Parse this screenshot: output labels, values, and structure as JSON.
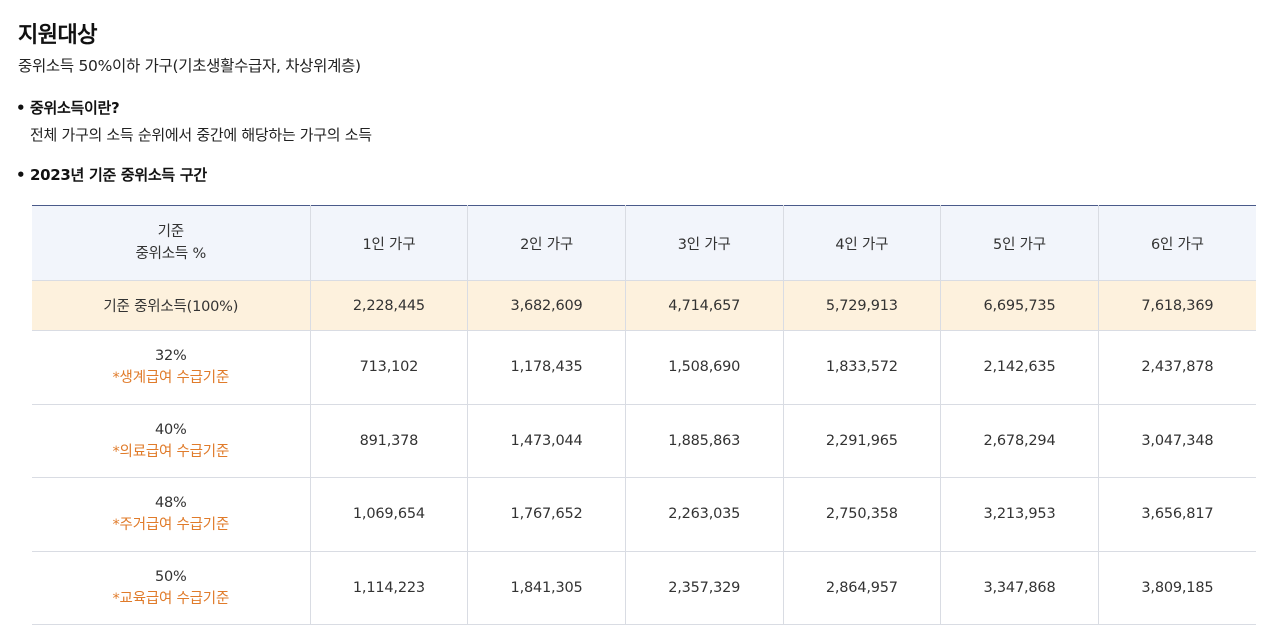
{
  "page": {
    "title": "지원대상",
    "summary": "중위소득 50%이하 가구(기초생활수급자, 차상위계층)"
  },
  "bullets": [
    {
      "marker": "•",
      "heading": "중위소득이란?",
      "description": "전체 가구의 소득 순위에서 중간에 해당하는 가구의 소득"
    },
    {
      "marker": "•",
      "heading": "2023년 기준 중위소득 구간"
    }
  ],
  "table": {
    "header": {
      "first_line1": "기준",
      "first_line2": "중위소득 %",
      "columns": [
        "1인 가구",
        "2인 가구",
        "3인 가구",
        "4인 가구",
        "5인 가구",
        "6인 가구"
      ]
    },
    "base_row": {
      "label": "기준 중위소득(100%)",
      "values": [
        "2,228,445",
        "3,682,609",
        "4,714,657",
        "5,729,913",
        "6,695,735",
        "7,618,369"
      ]
    },
    "tiers": [
      {
        "pct": "32%",
        "note": "*생계급여 수급기준",
        "values": [
          "713,102",
          "1,178,435",
          "1,508,690",
          "1,833,572",
          "2,142,635",
          "2,437,878"
        ]
      },
      {
        "pct": "40%",
        "note": "*의료급여 수급기준",
        "values": [
          "891,378",
          "1,473,044",
          "1,885,863",
          "2,291,965",
          "2,678,294",
          "3,047,348"
        ]
      },
      {
        "pct": "48%",
        "note": "*주거급여 수급기준",
        "values": [
          "1,069,654",
          "1,767,652",
          "2,263,035",
          "2,750,358",
          "3,213,953",
          "3,656,817"
        ]
      },
      {
        "pct": "50%",
        "note": "*교육급여 수급기준",
        "values": [
          "1,114,223",
          "1,841,305",
          "2,357,329",
          "2,864,957",
          "3,347,868",
          "3,809,185"
        ]
      }
    ]
  },
  "colors": {
    "header_bg": "#f2f5fb",
    "base_row_bg": "#fdf1dd",
    "note_text": "#e07b2a",
    "grid_line": "#d9dce3",
    "header_top_border": "#4a5a8a"
  }
}
